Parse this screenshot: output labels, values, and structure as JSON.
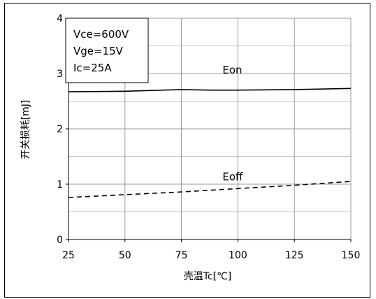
{
  "chart_data": {
    "type": "line",
    "title": "",
    "xlabel": "壳温Tc[℃]",
    "ylabel": "开关损耗[mJ]",
    "xlim": [
      25,
      150
    ],
    "ylim": [
      0,
      4
    ],
    "xticks": [
      25,
      50,
      75,
      100,
      125,
      150
    ],
    "yticks": [
      0,
      1,
      2,
      3,
      4
    ],
    "grid": true,
    "conditions": [
      "Vce=600V",
      "Vge=15V",
      "Ic=25A"
    ],
    "series": [
      {
        "name": "Eon",
        "line_style": "solid",
        "color": "#000000",
        "x": [
          25,
          50,
          75,
          87.5,
          100,
          125,
          150
        ],
        "y": [
          2.67,
          2.68,
          2.71,
          2.7,
          2.7,
          2.71,
          2.73
        ]
      },
      {
        "name": "Eoff",
        "line_style": "dashed",
        "color": "#000000",
        "x": [
          25,
          50,
          75,
          100,
          125,
          150
        ],
        "y": [
          0.76,
          0.81,
          0.86,
          0.92,
          0.98,
          1.05
        ]
      }
    ]
  }
}
